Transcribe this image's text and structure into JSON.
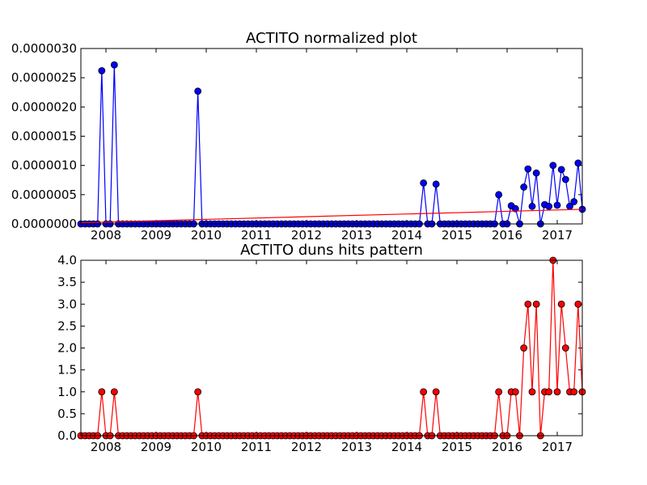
{
  "colors": {
    "top_series": "#0000ff",
    "bottom_series": "#ff0000",
    "trend": "#ff0000"
  },
  "chart_data": [
    {
      "type": "line",
      "title": "ACTITO normalized plot",
      "xlabel": "",
      "ylabel": "",
      "x_tick_labels": [
        "2008",
        "2009",
        "2010",
        "2011",
        "2012",
        "2013",
        "2014",
        "2015",
        "2016",
        "2017"
      ],
      "y_tick_labels": [
        "0.0000000",
        "0.0000005",
        "0.0000010",
        "0.0000015",
        "0.0000020",
        "0.0000025",
        "0.0000030"
      ],
      "xlim": [
        "2007-07",
        "2017-07"
      ],
      "ylim": [
        0,
        3e-06
      ],
      "grid": false,
      "legend": "none",
      "series": [
        {
          "color": "#0000ff",
          "marker": "circle",
          "points": [
            [
              "2007-07",
              0
            ],
            [
              "2007-08",
              0
            ],
            [
              "2007-09",
              0
            ],
            [
              "2007-10",
              0
            ],
            [
              "2007-11",
              0
            ],
            [
              "2007-12",
              2.62e-06
            ],
            [
              "2008-01",
              0
            ],
            [
              "2008-02",
              0
            ],
            [
              "2008-03",
              2.72e-06
            ],
            [
              "2008-04",
              0
            ],
            [
              "2008-05",
              0
            ],
            [
              "2008-06",
              0
            ],
            [
              "2008-07",
              0
            ],
            [
              "2008-08",
              0
            ],
            [
              "2008-09",
              0
            ],
            [
              "2008-10",
              0
            ],
            [
              "2008-11",
              0
            ],
            [
              "2008-12",
              0
            ],
            [
              "2009-01",
              0
            ],
            [
              "2009-02",
              0
            ],
            [
              "2009-03",
              0
            ],
            [
              "2009-04",
              0
            ],
            [
              "2009-05",
              0
            ],
            [
              "2009-06",
              0
            ],
            [
              "2009-07",
              0
            ],
            [
              "2009-08",
              0
            ],
            [
              "2009-09",
              0
            ],
            [
              "2009-10",
              0
            ],
            [
              "2009-11",
              2.27e-06
            ],
            [
              "2009-12",
              0
            ],
            [
              "2010-01",
              0
            ],
            [
              "2010-02",
              0
            ],
            [
              "2010-03",
              0
            ],
            [
              "2010-04",
              0
            ],
            [
              "2010-05",
              0
            ],
            [
              "2010-06",
              0
            ],
            [
              "2010-07",
              0
            ],
            [
              "2010-08",
              0
            ],
            [
              "2010-09",
              0
            ],
            [
              "2010-10",
              0
            ],
            [
              "2010-11",
              0
            ],
            [
              "2010-12",
              0
            ],
            [
              "2011-01",
              0
            ],
            [
              "2011-02",
              0
            ],
            [
              "2011-03",
              0
            ],
            [
              "2011-04",
              0
            ],
            [
              "2011-05",
              0
            ],
            [
              "2011-06",
              0
            ],
            [
              "2011-07",
              0
            ],
            [
              "2011-08",
              0
            ],
            [
              "2011-09",
              0
            ],
            [
              "2011-10",
              0
            ],
            [
              "2011-11",
              0
            ],
            [
              "2011-12",
              0
            ],
            [
              "2012-01",
              0
            ],
            [
              "2012-02",
              0
            ],
            [
              "2012-03",
              0
            ],
            [
              "2012-04",
              0
            ],
            [
              "2012-05",
              0
            ],
            [
              "2012-06",
              0
            ],
            [
              "2012-07",
              0
            ],
            [
              "2012-08",
              0
            ],
            [
              "2012-09",
              0
            ],
            [
              "2012-10",
              0
            ],
            [
              "2012-11",
              0
            ],
            [
              "2012-12",
              0
            ],
            [
              "2013-01",
              0
            ],
            [
              "2013-02",
              0
            ],
            [
              "2013-03",
              0
            ],
            [
              "2013-04",
              0
            ],
            [
              "2013-05",
              0
            ],
            [
              "2013-06",
              0
            ],
            [
              "2013-07",
              0
            ],
            [
              "2013-08",
              0
            ],
            [
              "2013-09",
              0
            ],
            [
              "2013-10",
              0
            ],
            [
              "2013-11",
              0
            ],
            [
              "2013-12",
              0
            ],
            [
              "2014-01",
              0
            ],
            [
              "2014-02",
              0
            ],
            [
              "2014-03",
              0
            ],
            [
              "2014-04",
              0
            ],
            [
              "2014-05",
              7e-07
            ],
            [
              "2014-06",
              0
            ],
            [
              "2014-07",
              0
            ],
            [
              "2014-08",
              6.8e-07
            ],
            [
              "2014-09",
              0
            ],
            [
              "2014-10",
              0
            ],
            [
              "2014-11",
              0
            ],
            [
              "2014-12",
              0
            ],
            [
              "2015-01",
              0
            ],
            [
              "2015-02",
              0
            ],
            [
              "2015-03",
              0
            ],
            [
              "2015-04",
              0
            ],
            [
              "2015-05",
              0
            ],
            [
              "2015-06",
              0
            ],
            [
              "2015-07",
              0
            ],
            [
              "2015-08",
              0
            ],
            [
              "2015-09",
              0
            ],
            [
              "2015-10",
              0
            ],
            [
              "2015-11",
              5e-07
            ],
            [
              "2015-12",
              0
            ],
            [
              "2016-01",
              0
            ],
            [
              "2016-02",
              3.1e-07
            ],
            [
              "2016-03",
              2.6e-07
            ],
            [
              "2016-04",
              0
            ],
            [
              "2016-05",
              6.3e-07
            ],
            [
              "2016-06",
              9.4e-07
            ],
            [
              "2016-07",
              3e-07
            ],
            [
              "2016-08",
              8.7e-07
            ],
            [
              "2016-09",
              0
            ],
            [
              "2016-10",
              3.3e-07
            ],
            [
              "2016-11",
              3e-07
            ],
            [
              "2016-12",
              1e-06
            ],
            [
              "2017-01",
              3.2e-07
            ],
            [
              "2017-02",
              9.3e-07
            ],
            [
              "2017-03",
              7.6e-07
            ],
            [
              "2017-04",
              3e-07
            ],
            [
              "2017-05",
              3.8e-07
            ],
            [
              "2017-06",
              1.04e-06
            ],
            [
              "2017-07",
              2.5e-07
            ]
          ]
        },
        {
          "color": "#ff0000",
          "marker": "none",
          "points": [
            [
              "2007-07",
              2e-08
            ],
            [
              "2017-07",
              2.5e-07
            ]
          ]
        }
      ]
    },
    {
      "type": "line",
      "title": "ACTITO duns hits pattern",
      "xlabel": "",
      "ylabel": "",
      "x_tick_labels": [
        "2008",
        "2009",
        "2010",
        "2011",
        "2012",
        "2013",
        "2014",
        "2015",
        "2016",
        "2017"
      ],
      "y_tick_labels": [
        "0.0",
        "0.5",
        "1.0",
        "1.5",
        "2.0",
        "2.5",
        "3.0",
        "3.5",
        "4.0"
      ],
      "xlim": [
        "2007-07",
        "2017-07"
      ],
      "ylim": [
        0,
        4
      ],
      "grid": false,
      "legend": "none",
      "series": [
        {
          "color": "#ff0000",
          "marker": "circle",
          "points": [
            [
              "2007-07",
              0
            ],
            [
              "2007-08",
              0
            ],
            [
              "2007-09",
              0
            ],
            [
              "2007-10",
              0
            ],
            [
              "2007-11",
              0
            ],
            [
              "2007-12",
              1
            ],
            [
              "2008-01",
              0
            ],
            [
              "2008-02",
              0
            ],
            [
              "2008-03",
              1
            ],
            [
              "2008-04",
              0
            ],
            [
              "2008-05",
              0
            ],
            [
              "2008-06",
              0
            ],
            [
              "2008-07",
              0
            ],
            [
              "2008-08",
              0
            ],
            [
              "2008-09",
              0
            ],
            [
              "2008-10",
              0
            ],
            [
              "2008-11",
              0
            ],
            [
              "2008-12",
              0
            ],
            [
              "2009-01",
              0
            ],
            [
              "2009-02",
              0
            ],
            [
              "2009-03",
              0
            ],
            [
              "2009-04",
              0
            ],
            [
              "2009-05",
              0
            ],
            [
              "2009-06",
              0
            ],
            [
              "2009-07",
              0
            ],
            [
              "2009-08",
              0
            ],
            [
              "2009-09",
              0
            ],
            [
              "2009-10",
              0
            ],
            [
              "2009-11",
              1
            ],
            [
              "2009-12",
              0
            ],
            [
              "2010-01",
              0
            ],
            [
              "2010-02",
              0
            ],
            [
              "2010-03",
              0
            ],
            [
              "2010-04",
              0
            ],
            [
              "2010-05",
              0
            ],
            [
              "2010-06",
              0
            ],
            [
              "2010-07",
              0
            ],
            [
              "2010-08",
              0
            ],
            [
              "2010-09",
              0
            ],
            [
              "2010-10",
              0
            ],
            [
              "2010-11",
              0
            ],
            [
              "2010-12",
              0
            ],
            [
              "2011-01",
              0
            ],
            [
              "2011-02",
              0
            ],
            [
              "2011-03",
              0
            ],
            [
              "2011-04",
              0
            ],
            [
              "2011-05",
              0
            ],
            [
              "2011-06",
              0
            ],
            [
              "2011-07",
              0
            ],
            [
              "2011-08",
              0
            ],
            [
              "2011-09",
              0
            ],
            [
              "2011-10",
              0
            ],
            [
              "2011-11",
              0
            ],
            [
              "2011-12",
              0
            ],
            [
              "2012-01",
              0
            ],
            [
              "2012-02",
              0
            ],
            [
              "2012-03",
              0
            ],
            [
              "2012-04",
              0
            ],
            [
              "2012-05",
              0
            ],
            [
              "2012-06",
              0
            ],
            [
              "2012-07",
              0
            ],
            [
              "2012-08",
              0
            ],
            [
              "2012-09",
              0
            ],
            [
              "2012-10",
              0
            ],
            [
              "2012-11",
              0
            ],
            [
              "2012-12",
              0
            ],
            [
              "2013-01",
              0
            ],
            [
              "2013-02",
              0
            ],
            [
              "2013-03",
              0
            ],
            [
              "2013-04",
              0
            ],
            [
              "2013-05",
              0
            ],
            [
              "2013-06",
              0
            ],
            [
              "2013-07",
              0
            ],
            [
              "2013-08",
              0
            ],
            [
              "2013-09",
              0
            ],
            [
              "2013-10",
              0
            ],
            [
              "2013-11",
              0
            ],
            [
              "2013-12",
              0
            ],
            [
              "2014-01",
              0
            ],
            [
              "2014-02",
              0
            ],
            [
              "2014-03",
              0
            ],
            [
              "2014-04",
              0
            ],
            [
              "2014-05",
              1
            ],
            [
              "2014-06",
              0
            ],
            [
              "2014-07",
              0
            ],
            [
              "2014-08",
              1
            ],
            [
              "2014-09",
              0
            ],
            [
              "2014-10",
              0
            ],
            [
              "2014-11",
              0
            ],
            [
              "2014-12",
              0
            ],
            [
              "2015-01",
              0
            ],
            [
              "2015-02",
              0
            ],
            [
              "2015-03",
              0
            ],
            [
              "2015-04",
              0
            ],
            [
              "2015-05",
              0
            ],
            [
              "2015-06",
              0
            ],
            [
              "2015-07",
              0
            ],
            [
              "2015-08",
              0
            ],
            [
              "2015-09",
              0
            ],
            [
              "2015-10",
              0
            ],
            [
              "2015-11",
              1
            ],
            [
              "2015-12",
              0
            ],
            [
              "2016-01",
              0
            ],
            [
              "2016-02",
              1
            ],
            [
              "2016-03",
              1
            ],
            [
              "2016-04",
              0
            ],
            [
              "2016-05",
              2
            ],
            [
              "2016-06",
              3
            ],
            [
              "2016-07",
              1
            ],
            [
              "2016-08",
              3
            ],
            [
              "2016-09",
              0
            ],
            [
              "2016-10",
              1
            ],
            [
              "2016-11",
              1
            ],
            [
              "2016-12",
              4
            ],
            [
              "2017-01",
              1
            ],
            [
              "2017-02",
              3
            ],
            [
              "2017-03",
              2
            ],
            [
              "2017-04",
              1
            ],
            [
              "2017-05",
              1
            ],
            [
              "2017-06",
              3
            ],
            [
              "2017-07",
              1
            ]
          ]
        }
      ]
    }
  ]
}
